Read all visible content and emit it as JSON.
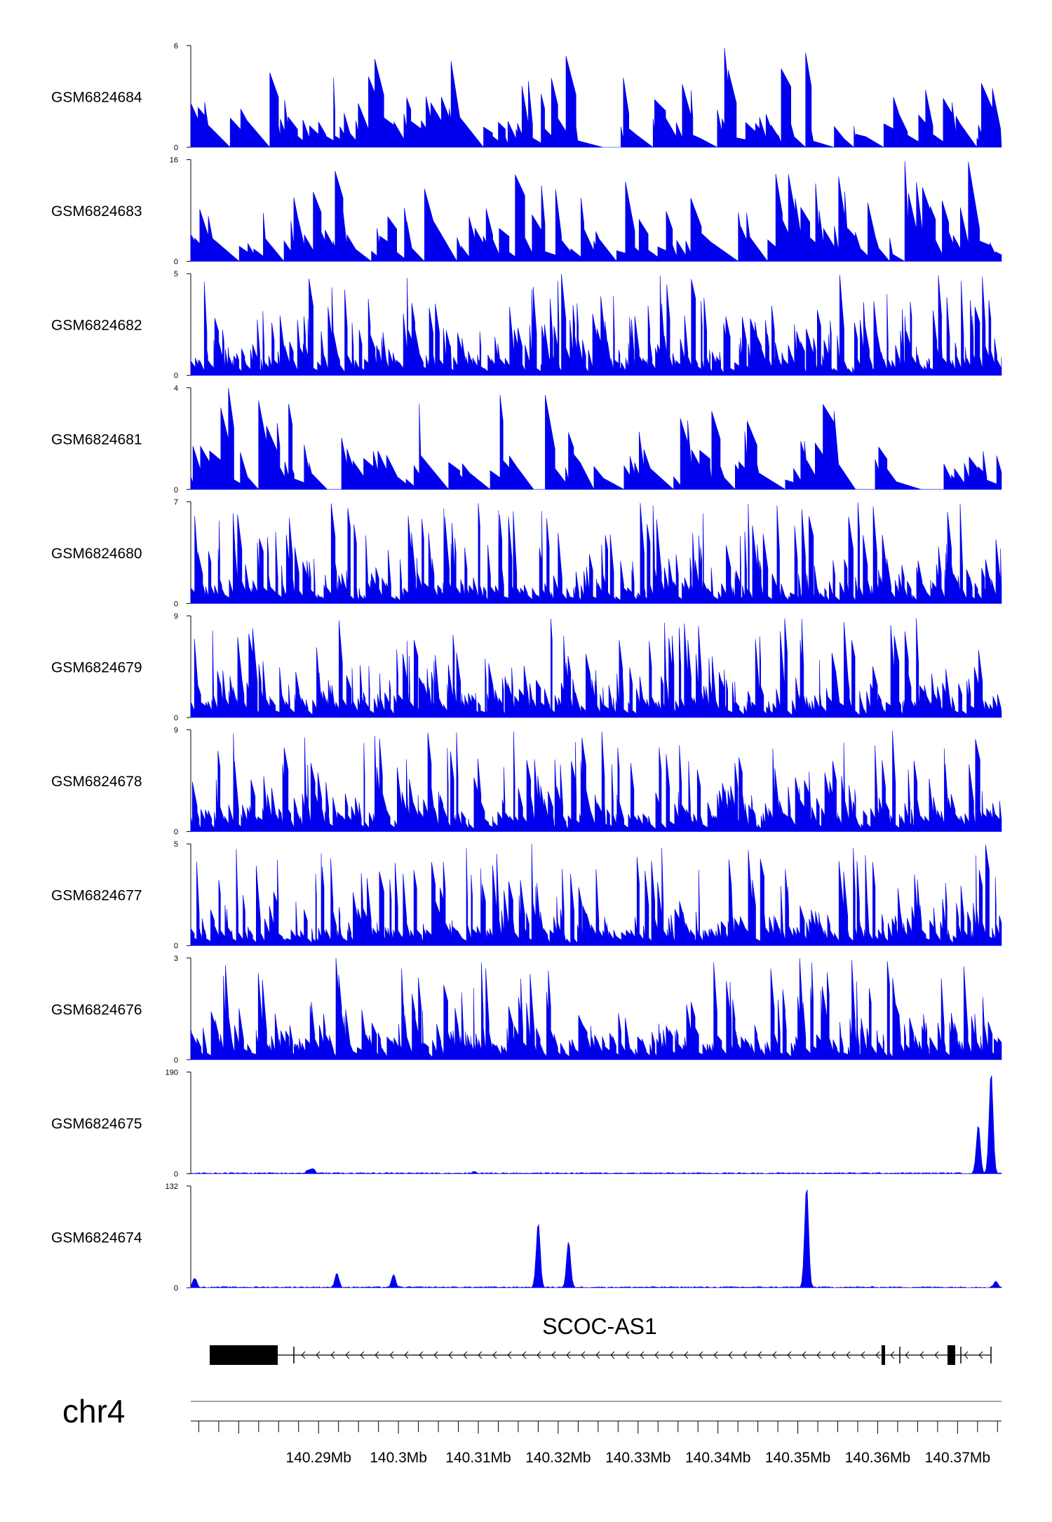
{
  "chart_data": {
    "type": "area",
    "chromosome": "chr4",
    "gene": {
      "name": "SCOC-AS1",
      "strand": "-"
    },
    "x_axis": {
      "range_mb": [
        140.274,
        140.3755
      ],
      "tick_labels": [
        "140.29Mb",
        "140.3Mb",
        "140.31Mb",
        "140.32Mb",
        "140.33Mb",
        "140.34Mb",
        "140.35Mb",
        "140.36Mb",
        "140.37Mb"
      ],
      "tick_values_mb": [
        140.29,
        140.3,
        140.31,
        140.32,
        140.33,
        140.34,
        140.35,
        140.36,
        140.37
      ]
    },
    "color": "#0000ee",
    "tracks": [
      {
        "name": "GSM6824684",
        "ymax": 6,
        "ymin": 0,
        "pattern": "sparse"
      },
      {
        "name": "GSM6824683",
        "ymax": 16,
        "ymin": 0,
        "pattern": "sparse"
      },
      {
        "name": "GSM6824682",
        "ymax": 5,
        "ymin": 0,
        "pattern": "dense"
      },
      {
        "name": "GSM6824681",
        "ymax": 4,
        "ymin": 0,
        "pattern": "sparse"
      },
      {
        "name": "GSM6824680",
        "ymax": 7,
        "ymin": 0,
        "pattern": "dense"
      },
      {
        "name": "GSM6824679",
        "ymax": 9,
        "ymin": 0,
        "pattern": "dense"
      },
      {
        "name": "GSM6824678",
        "ymax": 9,
        "ymin": 0,
        "pattern": "dense"
      },
      {
        "name": "GSM6824677",
        "ymax": 5,
        "ymin": 0,
        "pattern": "dense"
      },
      {
        "name": "GSM6824676",
        "ymax": 3,
        "ymin": 0,
        "pattern": "dense"
      },
      {
        "name": "GSM6824675",
        "ymax": 190,
        "ymin": 0,
        "pattern": "peaks",
        "peaks_mb": [
          [
            140.2887,
            6
          ],
          [
            140.2893,
            8
          ],
          [
            140.3095,
            3
          ],
          [
            140.3726,
            90
          ],
          [
            140.3742,
            190
          ]
        ]
      },
      {
        "name": "GSM6824674",
        "ymax": 132,
        "ymin": 0,
        "pattern": "peaks",
        "peaks_mb": [
          [
            140.2745,
            12
          ],
          [
            140.2923,
            18
          ],
          [
            140.2994,
            16
          ],
          [
            140.3175,
            84
          ],
          [
            140.3213,
            60
          ],
          [
            140.3511,
            132
          ],
          [
            140.3748,
            8
          ]
        ]
      }
    ]
  }
}
